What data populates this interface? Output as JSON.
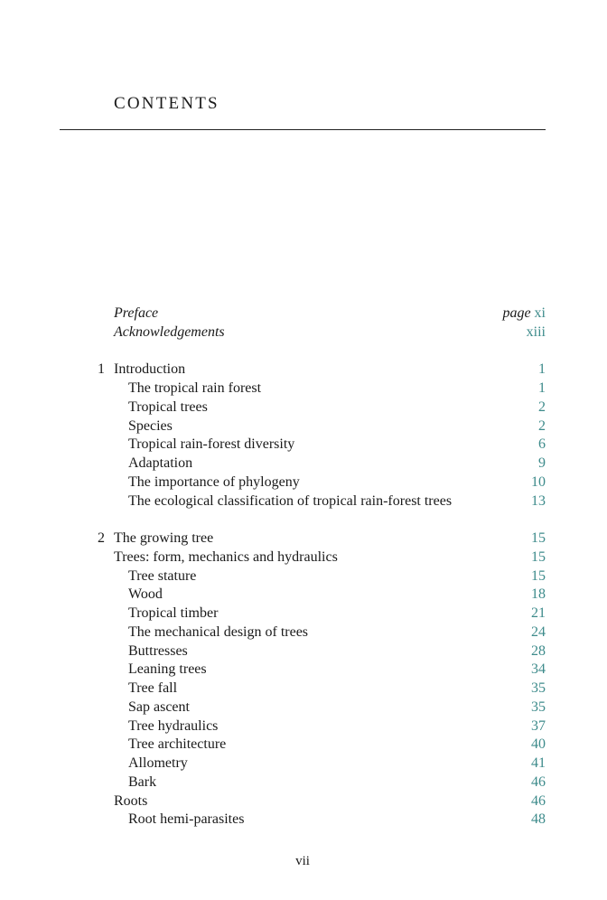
{
  "title": "CONTENTS",
  "page_prefix": "page",
  "folio": "vii",
  "colors": {
    "page_number": "#3d8b8b",
    "text": "#1a1a1a"
  },
  "groups": [
    [
      {
        "label": "Preface",
        "page": "xi",
        "level": 0,
        "italic": true,
        "prefix": true
      },
      {
        "label": "Acknowledgements",
        "page": "xiii",
        "level": 0,
        "italic": true
      }
    ],
    [
      {
        "num": "1",
        "label": "Introduction",
        "page": "1",
        "level": 0
      },
      {
        "label": "The tropical rain forest",
        "page": "1",
        "level": 1
      },
      {
        "label": "Tropical trees",
        "page": "2",
        "level": 1
      },
      {
        "label": "Species",
        "page": "2",
        "level": 1
      },
      {
        "label": "Tropical rain-forest diversity",
        "page": "6",
        "level": 1
      },
      {
        "label": "Adaptation",
        "page": "9",
        "level": 1
      },
      {
        "label": "The importance of phylogeny",
        "page": "10",
        "level": 1
      },
      {
        "label": "The ecological classification of tropical rain-forest trees",
        "page": "13",
        "level": 1
      }
    ],
    [
      {
        "num": "2",
        "label": "The growing tree",
        "page": "15",
        "level": 0
      },
      {
        "label": "Trees: form, mechanics and hydraulics",
        "page": "15",
        "level": 0
      },
      {
        "label": "Tree stature",
        "page": "15",
        "level": 1
      },
      {
        "label": "Wood",
        "page": "18",
        "level": 1
      },
      {
        "label": "Tropical timber",
        "page": "21",
        "level": 1
      },
      {
        "label": "The mechanical design of trees",
        "page": "24",
        "level": 1
      },
      {
        "label": "Buttresses",
        "page": "28",
        "level": 1
      },
      {
        "label": "Leaning trees",
        "page": "34",
        "level": 1
      },
      {
        "label": "Tree fall",
        "page": "35",
        "level": 1
      },
      {
        "label": "Sap ascent",
        "page": "35",
        "level": 1
      },
      {
        "label": "Tree hydraulics",
        "page": "37",
        "level": 1
      },
      {
        "label": "Tree architecture",
        "page": "40",
        "level": 1
      },
      {
        "label": "Allometry",
        "page": "41",
        "level": 1
      },
      {
        "label": "Bark",
        "page": "46",
        "level": 1
      },
      {
        "label": "Roots",
        "page": "46",
        "level": 0
      },
      {
        "label": "Root hemi-parasites",
        "page": "48",
        "level": 1
      }
    ]
  ]
}
